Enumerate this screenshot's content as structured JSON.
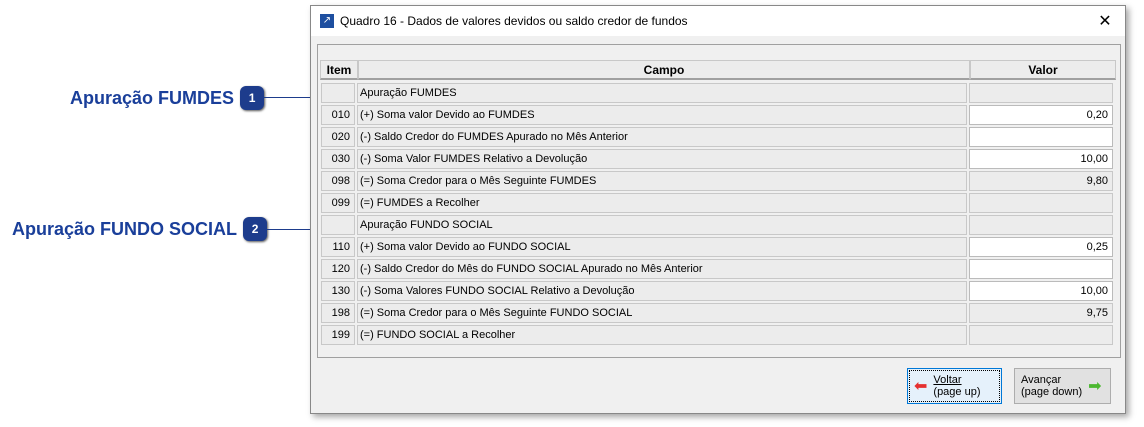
{
  "callouts": [
    {
      "label": "Apuração FUMDES",
      "num": "1"
    },
    {
      "label": "Apuração FUNDO SOCIAL",
      "num": "2"
    }
  ],
  "window": {
    "title": "Quadro 16 - Dados de valores devidos ou saldo credor de fundos",
    "close": "✕"
  },
  "table": {
    "headers": {
      "item": "Item",
      "campo": "Campo",
      "valor": "Valor"
    },
    "rows": [
      {
        "item": "",
        "campo": "Apuração FUMDES",
        "valor": "",
        "editable": false
      },
      {
        "item": "010",
        "campo": "(+) Soma valor Devido ao FUMDES",
        "valor": "0,20",
        "editable": true
      },
      {
        "item": "020",
        "campo": "(-) Saldo Credor do FUMDES Apurado no Mês Anterior",
        "valor": "",
        "editable": true
      },
      {
        "item": "030",
        "campo": "(-) Soma Valor FUMDES Relativo a Devolução",
        "valor": "10,00",
        "editable": true
      },
      {
        "item": "098",
        "campo": "(=) Soma Credor para o Mês Seguinte FUMDES",
        "valor": "9,80",
        "editable": false
      },
      {
        "item": "099",
        "campo": "(=) FUMDES a Recolher",
        "valor": "",
        "editable": false
      },
      {
        "item": "",
        "campo": "Apuração FUNDO SOCIAL",
        "valor": "",
        "editable": false
      },
      {
        "item": "110",
        "campo": "(+) Soma valor Devido ao FUNDO SOCIAL",
        "valor": "0,25",
        "editable": true
      },
      {
        "item": "120",
        "campo": "(-) Saldo Credor do Mês do FUNDO SOCIAL Apurado no Mês Anterior",
        "valor": "",
        "editable": true
      },
      {
        "item": "130",
        "campo": "(-) Soma Valores FUNDO SOCIAL Relativo a Devolução",
        "valor": "10,00",
        "editable": true
      },
      {
        "item": "198",
        "campo": "(=) Soma Credor para o Mês Seguinte FUNDO SOCIAL",
        "valor": "9,75",
        "editable": false
      },
      {
        "item": "199",
        "campo": "(=) FUNDO SOCIAL a Recolher",
        "valor": "",
        "editable": false
      }
    ]
  },
  "buttons": {
    "back": {
      "label": "Voltar",
      "sub": "(page up)"
    },
    "next": {
      "label": "Avançar",
      "sub": "(page down)"
    }
  },
  "colors": {
    "accent": "#1d3c8c",
    "back_arrow": "#e53030",
    "next_arrow": "#4cb830"
  }
}
